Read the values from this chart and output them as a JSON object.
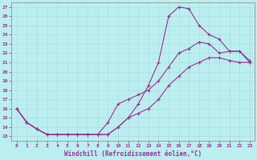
{
  "xlabel": "Windchill (Refroidissement éolien,°C)",
  "x_ticks": [
    0,
    1,
    2,
    3,
    4,
    5,
    6,
    7,
    8,
    9,
    10,
    11,
    12,
    13,
    14,
    15,
    16,
    17,
    18,
    19,
    20,
    21,
    22,
    23
  ],
  "y_ticks": [
    13,
    14,
    15,
    16,
    17,
    18,
    19,
    20,
    21,
    22,
    23,
    24,
    25,
    26,
    27
  ],
  "ylim": [
    12.5,
    27.5
  ],
  "xlim": [
    -0.5,
    23.5
  ],
  "line1_x": [
    0,
    1,
    2,
    3,
    4,
    5,
    6,
    7,
    8,
    9,
    10,
    11,
    12,
    13,
    14,
    15,
    16,
    17,
    18,
    19,
    20,
    21,
    22,
    23
  ],
  "line1_y": [
    16,
    14.5,
    13.8,
    13.2,
    13.2,
    13.2,
    13.2,
    13.2,
    13.2,
    13.2,
    14.0,
    15.0,
    16.5,
    18.5,
    21.0,
    26.0,
    27.0,
    26.8,
    25.0,
    24.0,
    23.5,
    22.2,
    22.2,
    21.0
  ],
  "line2_x": [
    0,
    1,
    2,
    3,
    4,
    5,
    6,
    7,
    8,
    9,
    10,
    11,
    12,
    13,
    14,
    15,
    16,
    17,
    18,
    19,
    20,
    21,
    22,
    23
  ],
  "line2_y": [
    16,
    14.5,
    13.8,
    13.2,
    13.2,
    13.2,
    13.2,
    13.2,
    13.2,
    14.5,
    16.5,
    17.0,
    17.5,
    18.0,
    19.0,
    20.5,
    22.0,
    22.5,
    23.2,
    23.0,
    22.0,
    22.2,
    22.2,
    21.2
  ],
  "line3_x": [
    0,
    1,
    2,
    3,
    4,
    5,
    6,
    7,
    8,
    9,
    10,
    11,
    12,
    13,
    14,
    15,
    16,
    17,
    18,
    19,
    20,
    21,
    22,
    23
  ],
  "line3_y": [
    16,
    14.5,
    13.8,
    13.2,
    13.2,
    13.2,
    13.2,
    13.2,
    13.2,
    13.2,
    14.0,
    15.0,
    15.5,
    16.0,
    17.0,
    18.5,
    19.5,
    20.5,
    21.0,
    21.5,
    21.5,
    21.2,
    21.0,
    21.0
  ],
  "line_color": "#993399",
  "bg_color": "#bbeeee",
  "grid_color": "#aadddd",
  "axis_color": "#993399"
}
